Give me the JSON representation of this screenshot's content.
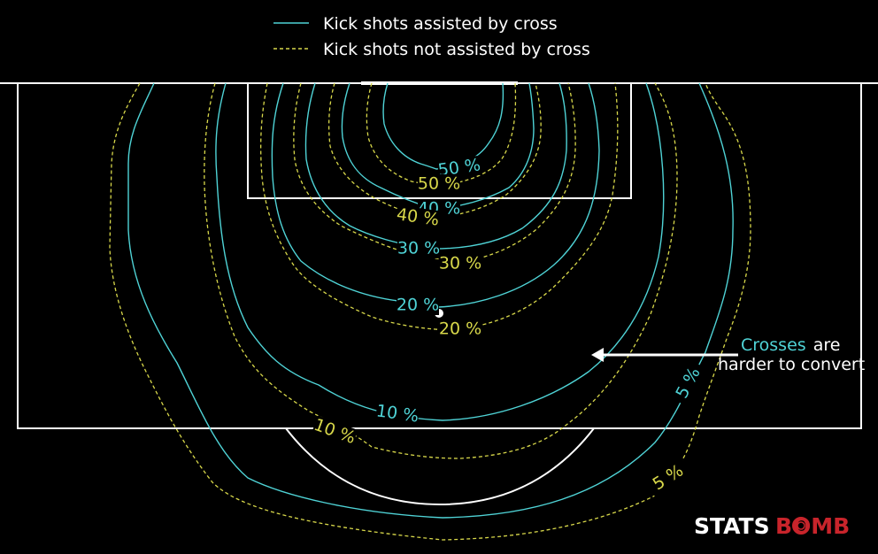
{
  "colors": {
    "background": "#000000",
    "pitch_lines": "#ffffff",
    "cross": "#4fd3d6",
    "no_cross": "#d8d84a",
    "logo_red": "#c8242b"
  },
  "chart_data": {
    "type": "contour",
    "title": "",
    "xlabel": "",
    "ylabel": "",
    "legend": {
      "placement": "top-center",
      "entries": [
        "Kick shots assisted by cross",
        "Kick shots not assisted by cross"
      ]
    },
    "series": [
      {
        "name": "Kick shots assisted by cross",
        "line_style": "solid",
        "color": "#4fd3d6",
        "levels": [
          "5 %",
          "10 %",
          "20 %",
          "30 %",
          "40 %",
          "50 %"
        ]
      },
      {
        "name": "Kick shots not assisted by cross",
        "line_style": "dashed",
        "color": "#d8d84a",
        "levels": [
          "5 %",
          "10 %",
          "20 %",
          "30 %",
          "40 %",
          "50 %"
        ]
      }
    ],
    "annotation": {
      "highlight": "Crosses",
      "rest": "are",
      "line2": "harder to convert"
    }
  },
  "logo": {
    "left": "STATS",
    "right": "BOMB"
  }
}
